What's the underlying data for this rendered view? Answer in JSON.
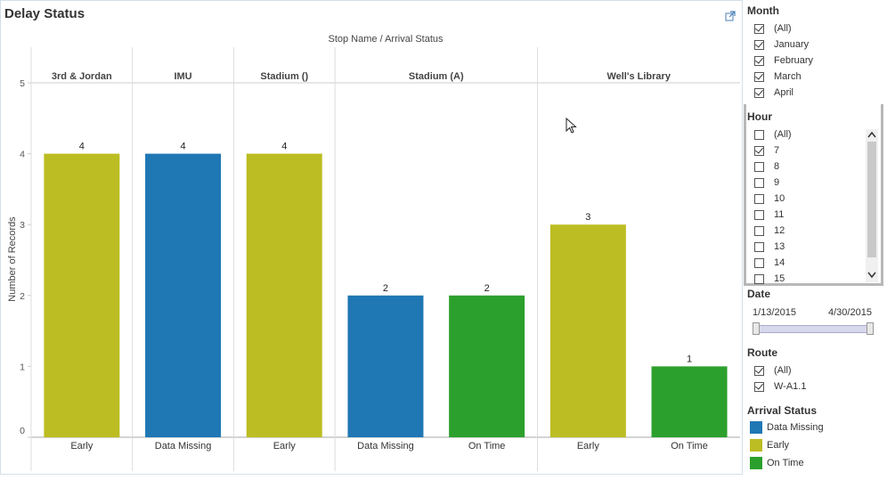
{
  "sheet": {
    "title": "Delay Status"
  },
  "chart_data": {
    "type": "bar",
    "header": "Stop Name  /  Arrival Status",
    "ylabel": "Number of Records",
    "ylim": [
      0,
      5
    ],
    "yticks": [
      0,
      1,
      2,
      3,
      4,
      5
    ],
    "groups": [
      {
        "name": "3rd & Jordan",
        "bars": [
          {
            "status": "Early",
            "value": 4
          }
        ]
      },
      {
        "name": "IMU",
        "bars": [
          {
            "status": "Data Missing",
            "value": 4
          }
        ]
      },
      {
        "name": "Stadium ()",
        "bars": [
          {
            "status": "Early",
            "value": 4
          }
        ]
      },
      {
        "name": "Stadium (A)",
        "bars": [
          {
            "status": "Data Missing",
            "value": 2
          },
          {
            "status": "On Time",
            "value": 2
          }
        ]
      },
      {
        "name": "Well's Library",
        "bars": [
          {
            "status": "Early",
            "value": 3
          },
          {
            "status": "On Time",
            "value": 1
          }
        ]
      }
    ],
    "colors": {
      "Data Missing": "#1f77b4",
      "Early": "#bcbd22",
      "On Time": "#2ca02c"
    }
  },
  "filters": {
    "month": {
      "title": "Month",
      "items": [
        {
          "label": "(All)",
          "checked": true
        },
        {
          "label": "January",
          "checked": true
        },
        {
          "label": "February",
          "checked": true
        },
        {
          "label": "March",
          "checked": true
        },
        {
          "label": "April",
          "checked": true
        }
      ]
    },
    "hour": {
      "title": "Hour",
      "items": [
        {
          "label": "(All)",
          "checked": false
        },
        {
          "label": "7",
          "checked": true
        },
        {
          "label": "8",
          "checked": false
        },
        {
          "label": "9",
          "checked": false
        },
        {
          "label": "10",
          "checked": false
        },
        {
          "label": "11",
          "checked": false
        },
        {
          "label": "12",
          "checked": false
        },
        {
          "label": "13",
          "checked": false
        },
        {
          "label": "14",
          "checked": false
        },
        {
          "label": "15",
          "checked": false
        }
      ]
    },
    "date": {
      "title": "Date",
      "start": "1/13/2015",
      "end": "4/30/2015"
    },
    "route": {
      "title": "Route",
      "items": [
        {
          "label": "(All)",
          "checked": true
        },
        {
          "label": "W-A1.1",
          "checked": true
        }
      ]
    },
    "arrival_status": {
      "title": "Arrival Status",
      "items": [
        {
          "label": "Data Missing",
          "color": "#1f77b4"
        },
        {
          "label": "Early",
          "color": "#bcbd22"
        },
        {
          "label": "On Time",
          "color": "#2ca02c"
        }
      ]
    }
  }
}
